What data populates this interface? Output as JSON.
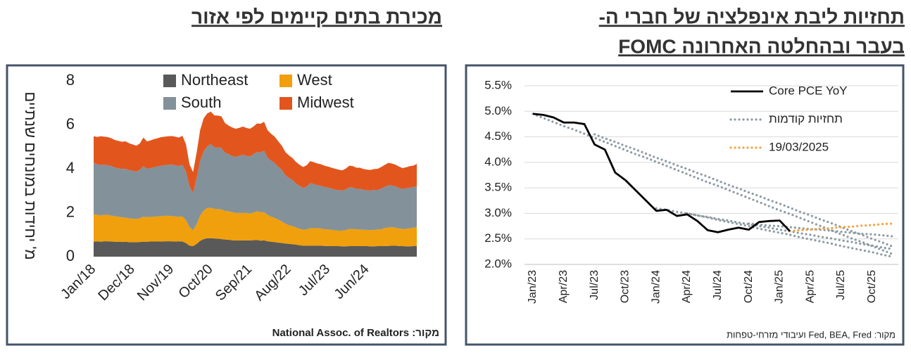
{
  "chart_data": [
    {
      "type": "stacked_area",
      "title": "מכירת בתים קיימים לפי אזור",
      "y_label": "מ' יחידות במונחים שנתיים",
      "source": "מקור: National Assoc. of Realtors",
      "ylim": [
        0,
        8
      ],
      "yticks": [
        0,
        2,
        4,
        6,
        8
      ],
      "grid": false,
      "legend": "top",
      "categories": [
        "Jan/18",
        null,
        null,
        null,
        null,
        null,
        null,
        null,
        null,
        null,
        null,
        "Dec/18",
        null,
        null,
        null,
        null,
        null,
        null,
        null,
        null,
        null,
        null,
        "Nov/19",
        null,
        null,
        null,
        null,
        null,
        null,
        null,
        null,
        null,
        null,
        "Oct/20",
        null,
        null,
        null,
        null,
        null,
        null,
        null,
        null,
        null,
        null,
        "Sep/21",
        null,
        null,
        null,
        null,
        null,
        null,
        null,
        null,
        null,
        null,
        "Aug/22",
        null,
        null,
        null,
        null,
        null,
        null,
        null,
        null,
        null,
        null,
        "Jul/23",
        null,
        null,
        null,
        null,
        null,
        null,
        null,
        null,
        null,
        null,
        "Jun/24",
        null,
        null,
        null,
        null,
        null,
        null,
        null,
        null,
        null,
        null,
        null,
        null,
        null,
        null
      ],
      "series": [
        {
          "name": "Northeast",
          "color": "#595959",
          "values": [
            0.68,
            0.7,
            0.68,
            0.7,
            0.7,
            0.69,
            0.68,
            0.68,
            0.67,
            0.68,
            0.66,
            0.66,
            0.66,
            0.67,
            0.68,
            0.68,
            0.69,
            0.69,
            0.69,
            0.69,
            0.7,
            0.7,
            0.7,
            0.69,
            0.7,
            0.69,
            0.62,
            0.5,
            0.48,
            0.58,
            0.72,
            0.8,
            0.84,
            0.84,
            0.83,
            0.82,
            0.8,
            0.78,
            0.77,
            0.75,
            0.74,
            0.74,
            0.74,
            0.74,
            0.74,
            0.75,
            0.76,
            0.73,
            0.74,
            0.7,
            0.68,
            0.66,
            0.64,
            0.62,
            0.6,
            0.58,
            0.57,
            0.55,
            0.52,
            0.5,
            0.5,
            0.5,
            0.5,
            0.5,
            0.5,
            0.49,
            0.48,
            0.48,
            0.48,
            0.48,
            0.47,
            0.47,
            0.48,
            0.48,
            0.48,
            0.48,
            0.48,
            0.48,
            0.47,
            0.47,
            0.48,
            0.48,
            0.48,
            0.49,
            0.5,
            0.5,
            0.48,
            0.48,
            0.47,
            0.47,
            0.48,
            0.48
          ]
        },
        {
          "name": "West",
          "color": "#f0a00c",
          "values": [
            1.25,
            1.2,
            1.2,
            1.2,
            1.2,
            1.18,
            1.16,
            1.14,
            1.12,
            1.1,
            1.08,
            1.07,
            1.06,
            1.08,
            1.14,
            1.12,
            1.12,
            1.13,
            1.14,
            1.15,
            1.16,
            1.16,
            1.15,
            1.14,
            1.12,
            1.14,
            1.05,
            0.85,
            0.72,
            0.9,
            1.15,
            1.3,
            1.38,
            1.38,
            1.35,
            1.35,
            1.35,
            1.3,
            1.3,
            1.28,
            1.25,
            1.25,
            1.25,
            1.25,
            1.22,
            1.26,
            1.3,
            1.3,
            1.28,
            1.2,
            1.14,
            1.1,
            1.05,
            0.98,
            0.9,
            0.85,
            0.82,
            0.78,
            0.75,
            0.73,
            0.74,
            0.8,
            0.8,
            0.8,
            0.78,
            0.76,
            0.76,
            0.74,
            0.72,
            0.7,
            0.72,
            0.74,
            0.78,
            0.78,
            0.76,
            0.76,
            0.74,
            0.74,
            0.74,
            0.75,
            0.76,
            0.77,
            0.82,
            0.84,
            0.84,
            0.82,
            0.8,
            0.78,
            0.8,
            0.82,
            0.84,
            0.86
          ]
        },
        {
          "name": "South",
          "color": "#83919a",
          "values": [
            2.35,
            2.3,
            2.3,
            2.28,
            2.26,
            2.25,
            2.22,
            2.2,
            2.2,
            2.22,
            2.2,
            2.18,
            2.15,
            2.2,
            2.3,
            2.2,
            2.22,
            2.25,
            2.28,
            2.3,
            2.3,
            2.32,
            2.34,
            2.33,
            2.3,
            2.35,
            2.2,
            1.85,
            1.7,
            2.1,
            2.5,
            2.7,
            2.8,
            2.9,
            2.8,
            2.8,
            2.8,
            2.65,
            2.6,
            2.55,
            2.55,
            2.6,
            2.65,
            2.6,
            2.6,
            2.65,
            2.7,
            2.72,
            2.8,
            2.6,
            2.55,
            2.5,
            2.4,
            2.35,
            2.2,
            2.15,
            2.1,
            2.0,
            1.95,
            1.9,
            1.95,
            2.05,
            2.0,
            1.95,
            1.95,
            1.92,
            1.9,
            1.88,
            1.85,
            1.85,
            1.82,
            1.85,
            1.9,
            1.88,
            1.85,
            1.85,
            1.82,
            1.8,
            1.8,
            1.82,
            1.8,
            1.85,
            1.88,
            1.92,
            1.9,
            1.88,
            1.85,
            1.82,
            1.84,
            1.86,
            1.84,
            1.88
          ]
        },
        {
          "name": "Midwest",
          "color": "#e2561e",
          "values": [
            1.2,
            1.25,
            1.3,
            1.28,
            1.28,
            1.27,
            1.25,
            1.25,
            1.24,
            1.25,
            1.22,
            1.2,
            1.18,
            1.2,
            1.3,
            1.25,
            1.26,
            1.28,
            1.28,
            1.3,
            1.3,
            1.3,
            1.3,
            1.3,
            1.3,
            1.32,
            1.25,
            1.0,
            0.95,
            1.15,
            1.4,
            1.5,
            1.5,
            1.48,
            1.45,
            1.45,
            1.43,
            1.35,
            1.3,
            1.3,
            1.28,
            1.27,
            1.28,
            1.27,
            1.26,
            1.26,
            1.3,
            1.3,
            1.32,
            1.25,
            1.22,
            1.2,
            1.16,
            1.1,
            1.06,
            1.03,
            1.0,
            0.98,
            0.96,
            0.95,
            0.97,
            1.0,
            1.0,
            0.99,
            0.98,
            0.97,
            0.96,
            0.95,
            0.95,
            0.93,
            0.92,
            0.95,
            0.98,
            0.98,
            0.96,
            0.96,
            0.95,
            0.94,
            0.94,
            0.95,
            0.96,
            0.98,
            1.0,
            1.02,
            1.0,
            0.99,
            0.97,
            0.95,
            0.96,
            0.97,
            0.98,
            1.0
          ]
        }
      ]
    },
    {
      "type": "line",
      "title": [
        "תחזיות ליבת אינפלציה של חברי ה-",
        "FOMC בעבר ובהחלטה האחרונה"
      ],
      "source": "מקור: Fed, BEA, Fred ועיבודי מזרחי-טפחות",
      "ylim": [
        2.0,
        5.5
      ],
      "yticks": [
        {
          "value": 2.0,
          "label": "2.0%"
        },
        {
          "value": 2.5,
          "label": "2.5%"
        },
        {
          "value": 3.0,
          "label": "3.0%"
        },
        {
          "value": 3.5,
          "label": "3.5%"
        },
        {
          "value": 4.0,
          "label": "4.0%"
        },
        {
          "value": 4.5,
          "label": "4.5%"
        },
        {
          "value": 5.0,
          "label": "5.0%"
        },
        {
          "value": 5.5,
          "label": "5.5%"
        }
      ],
      "grid": true,
      "legend": "top-right",
      "categories": [
        "Jan/23",
        null,
        null,
        "Apr/23",
        null,
        null,
        "Jul/23",
        null,
        null,
        "Oct/23",
        null,
        null,
        "Jan/24",
        null,
        null,
        "Apr/24",
        null,
        null,
        "Jul/24",
        null,
        null,
        "Oct/24",
        null,
        null,
        "Jan/25",
        null,
        null,
        "Apr/25",
        null,
        null,
        "Jul/25",
        null,
        null,
        "Oct/25",
        null,
        null
      ],
      "series": [
        {
          "name": "Core PCE YoY",
          "color": "#000000",
          "style": "solid",
          "values": [
            4.95,
            4.93,
            4.88,
            4.78,
            4.78,
            4.75,
            4.35,
            4.25,
            3.8,
            3.65,
            3.45,
            3.25,
            3.05,
            3.07,
            2.95,
            2.98,
            2.85,
            2.67,
            2.63,
            2.68,
            2.72,
            2.68,
            2.83,
            2.85,
            2.86,
            2.65,
            null,
            null,
            null,
            null,
            null,
            null,
            null,
            null,
            null,
            null
          ]
        },
        {
          "name": "תחזיות קודמות",
          "color": "#8c9aa3",
          "style": "dotted",
          "values": [
            4.95,
            4.87,
            4.79,
            4.71,
            4.64,
            4.56,
            4.48,
            4.4,
            4.32,
            4.24,
            4.16,
            4.09,
            4.01,
            3.93,
            3.85,
            3.77,
            3.69,
            3.61,
            3.54,
            3.46,
            3.38,
            3.3,
            3.22,
            3.14,
            3.06,
            2.99,
            2.91,
            2.83,
            2.75,
            2.67,
            2.59,
            2.51,
            2.44,
            2.36,
            2.28,
            2.2
          ]
        },
        {
          "color": "#8c9aa3",
          "style": "dotted",
          "values": [
            null,
            null,
            null,
            null,
            null,
            null,
            4.55,
            4.47,
            4.4,
            4.32,
            4.25,
            4.17,
            4.09,
            4.02,
            3.94,
            3.87,
            3.79,
            3.72,
            3.64,
            3.56,
            3.49,
            3.41,
            3.34,
            3.26,
            3.19,
            3.11,
            3.03,
            2.96,
            2.88,
            2.81,
            2.73,
            2.65,
            2.58,
            2.5,
            2.43,
            2.35
          ]
        },
        {
          "color": "#8c9aa3",
          "style": "dotted",
          "values": [
            null,
            null,
            null,
            null,
            null,
            null,
            null,
            null,
            null,
            null,
            null,
            null,
            3.1,
            3.07,
            3.03,
            3.0,
            2.96,
            2.93,
            2.89,
            2.86,
            2.82,
            2.79,
            2.75,
            2.72,
            2.68,
            2.65,
            2.61,
            2.58,
            2.54,
            2.51,
            2.47,
            2.44,
            2.4,
            2.37,
            2.33,
            2.3
          ]
        },
        {
          "color": "#8c9aa3",
          "style": "dotted",
          "values": [
            null,
            null,
            null,
            null,
            null,
            null,
            null,
            null,
            null,
            null,
            null,
            null,
            null,
            null,
            null,
            3.0,
            2.96,
            2.92,
            2.87,
            2.83,
            2.79,
            2.75,
            2.7,
            2.66,
            2.62,
            2.58,
            2.53,
            2.49,
            2.45,
            2.41,
            2.36,
            2.32,
            2.28,
            2.24,
            2.19,
            2.15
          ]
        },
        {
          "color": "#8c9aa3",
          "style": "dotted",
          "values": [
            null,
            null,
            null,
            null,
            null,
            null,
            null,
            null,
            null,
            null,
            null,
            null,
            null,
            null,
            null,
            null,
            null,
            null,
            null,
            null,
            null,
            2.8,
            2.78,
            2.76,
            2.75,
            2.73,
            2.71,
            2.69,
            2.68,
            2.66,
            2.64,
            2.62,
            2.6,
            2.59,
            2.57,
            2.55
          ]
        },
        {
          "name": "19/03/2025",
          "color": "#f4a340",
          "style": "dotted",
          "values": [
            null,
            null,
            null,
            null,
            null,
            null,
            null,
            null,
            null,
            null,
            null,
            null,
            null,
            null,
            null,
            null,
            null,
            null,
            null,
            null,
            null,
            null,
            null,
            null,
            null,
            2.65,
            2.67,
            2.68,
            2.7,
            2.71,
            2.73,
            2.74,
            2.76,
            2.77,
            2.79,
            2.8
          ]
        }
      ]
    }
  ]
}
